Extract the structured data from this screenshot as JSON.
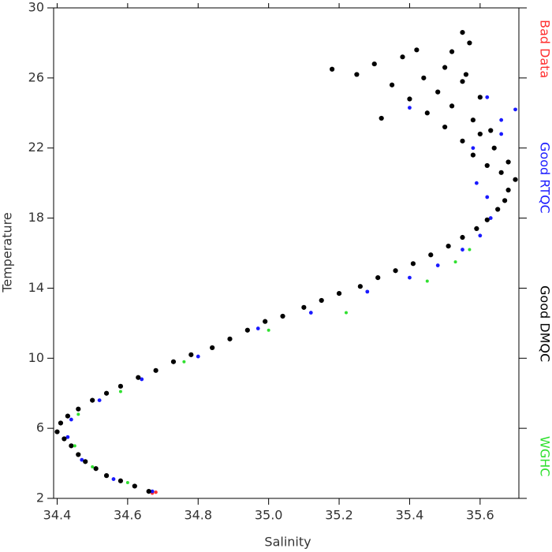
{
  "chart_data": {
    "type": "scatter",
    "x_label": "Salinity",
    "y_label": "Temperature",
    "xlim": [
      34.39,
      35.71
    ],
    "ylim": [
      2,
      30
    ],
    "xticks": [
      34.4,
      34.6,
      34.8,
      {
        "value": 35,
        "label": "35.0"
      },
      35.2,
      35.4,
      35.6
    ],
    "yticks": [
      2,
      6,
      10,
      14,
      18,
      22,
      26,
      30
    ],
    "legend": "right",
    "series": [
      {
        "name": "Bad Data",
        "color": "#ff3030",
        "x": [
          34.67,
          34.68
        ],
        "y": [
          2.3,
          2.35
        ]
      },
      {
        "name": "Good RTQC",
        "color": "#1a1aff",
        "x": [
          34.67,
          34.56,
          34.47,
          34.43,
          34.44,
          34.52,
          34.64,
          34.8,
          34.97,
          35.12,
          35.28,
          35.4,
          35.48,
          35.55,
          35.6,
          35.63,
          35.62,
          35.59,
          35.66,
          35.7,
          35.62,
          35.66,
          35.4,
          35.58
        ],
        "y": [
          2.4,
          3.1,
          4.2,
          5.5,
          6.5,
          7.6,
          8.8,
          10.1,
          11.7,
          12.6,
          13.8,
          14.6,
          15.3,
          16.2,
          17.0,
          18.0,
          19.2,
          20.0,
          22.8,
          24.2,
          24.9,
          23.6,
          24.3,
          22.0
        ]
      },
      {
        "name": "Good DMQC",
        "color": "#000000",
        "x": [
          34.66,
          34.62,
          34.58,
          34.54,
          34.51,
          34.48,
          34.46,
          34.44,
          34.42,
          34.4,
          34.41,
          34.43,
          34.46,
          34.5,
          34.54,
          34.58,
          34.63,
          34.68,
          34.73,
          34.78,
          34.84,
          34.89,
          34.94,
          34.99,
          35.04,
          35.1,
          35.15,
          35.2,
          35.26,
          35.31,
          35.36,
          35.41,
          35.46,
          35.51,
          35.55,
          35.59,
          35.62,
          35.65,
          35.67,
          35.68,
          35.7,
          35.66,
          35.62,
          35.58,
          35.64,
          35.55,
          35.6,
          35.5,
          35.58,
          35.45,
          35.52,
          35.4,
          35.48,
          35.35,
          35.44,
          35.25,
          35.18,
          35.3,
          35.38,
          35.5,
          35.52,
          35.55,
          35.57,
          35.42,
          35.6,
          35.55,
          35.63,
          35.68,
          35.32,
          35.56
        ],
        "y": [
          2.4,
          2.7,
          3.0,
          3.3,
          3.7,
          4.1,
          4.5,
          5.0,
          5.4,
          5.8,
          6.3,
          6.7,
          7.1,
          7.6,
          8.0,
          8.4,
          8.9,
          9.3,
          9.8,
          10.2,
          10.6,
          11.1,
          11.6,
          12.1,
          12.4,
          12.9,
          13.3,
          13.7,
          14.1,
          14.6,
          15.0,
          15.4,
          15.9,
          16.4,
          16.9,
          17.4,
          17.9,
          18.5,
          19.0,
          19.6,
          20.2,
          20.6,
          21.0,
          21.6,
          22.0,
          22.4,
          22.8,
          23.2,
          23.6,
          24.0,
          24.4,
          24.8,
          25.2,
          25.6,
          26.0,
          26.2,
          26.5,
          26.8,
          27.2,
          26.6,
          27.5,
          28.6,
          28.0,
          27.6,
          24.9,
          25.8,
          23.0,
          21.2,
          23.7,
          26.2
        ]
      },
      {
        "name": "WGHC",
        "color": "#30e030",
        "x": [
          34.6,
          34.5,
          34.45,
          34.46,
          34.58,
          34.76,
          35.0,
          35.22,
          35.45,
          35.53,
          35.57
        ],
        "y": [
          2.9,
          3.8,
          5.0,
          6.8,
          8.1,
          9.8,
          11.6,
          12.6,
          14.4,
          15.5,
          16.2
        ]
      }
    ]
  }
}
